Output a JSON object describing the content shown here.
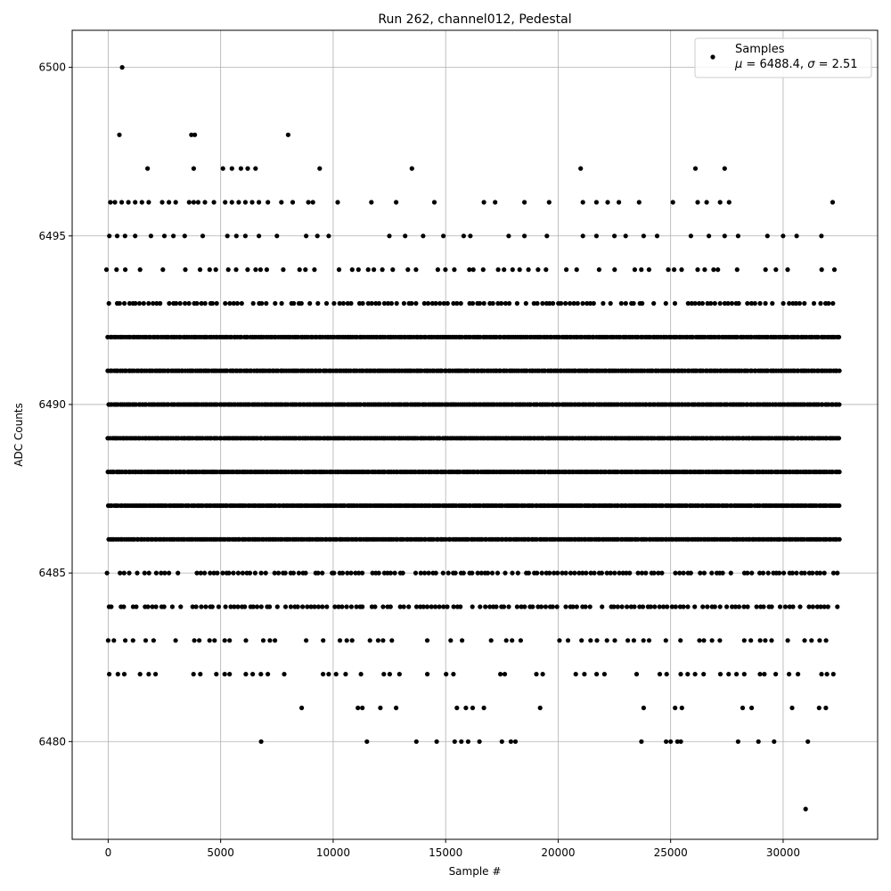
{
  "chart_data": {
    "type": "scatter",
    "title": "Run 262, channel012, Pedestal",
    "xlabel": "Sample #",
    "ylabel": "ADC Counts",
    "xlim": [
      -1600,
      34200
    ],
    "ylim": [
      6477.1,
      6501.1
    ],
    "x_ticks": [
      0,
      5000,
      10000,
      15000,
      20000,
      25000,
      30000
    ],
    "x_tick_labels": [
      "0",
      "5000",
      "10000",
      "15000",
      "20000",
      "25000",
      "30000"
    ],
    "y_ticks": [
      6480,
      6485,
      6490,
      6495,
      6500
    ],
    "y_tick_labels": [
      "6480",
      "6485",
      "6490",
      "6495",
      "6500"
    ],
    "grid": true,
    "marker_color": "#000000",
    "legend": {
      "placement": "top-right",
      "entry_label": "Samples",
      "stats_line_parts": [
        "μ",
        " = 6488.4, ",
        "σ",
        " = 2.51"
      ]
    },
    "series": [
      {
        "name": "Samples",
        "x_range": [
          0,
          32500
        ],
        "levels": [
          {
            "y": 6492,
            "density": "continuous"
          },
          {
            "y": 6491,
            "density": "continuous"
          },
          {
            "y": 6490,
            "density": "continuous"
          },
          {
            "y": 6489,
            "density": "continuous"
          },
          {
            "y": 6488,
            "density": "continuous"
          },
          {
            "y": 6487,
            "density": "continuous"
          },
          {
            "y": 6486,
            "density": "continuous"
          },
          {
            "y": 6493,
            "density": "dense"
          },
          {
            "y": 6485,
            "density": "dense"
          },
          {
            "y": 6484,
            "density": "dense"
          },
          {
            "y": 6494,
            "density": "medium"
          },
          {
            "y": 6483,
            "density": "medium"
          },
          {
            "y": 6482,
            "density": "medium"
          }
        ],
        "sparse_points": [
          {
            "x": 620,
            "y": 6500
          },
          {
            "x": 500,
            "y": 6498
          },
          {
            "x": 3700,
            "y": 6498
          },
          {
            "x": 3850,
            "y": 6498
          },
          {
            "x": 8000,
            "y": 6498
          },
          {
            "x": 1750,
            "y": 6497
          },
          {
            "x": 3800,
            "y": 6497
          },
          {
            "x": 5100,
            "y": 6497
          },
          {
            "x": 5500,
            "y": 6497
          },
          {
            "x": 5900,
            "y": 6497
          },
          {
            "x": 6200,
            "y": 6497
          },
          {
            "x": 6550,
            "y": 6497
          },
          {
            "x": 9400,
            "y": 6497
          },
          {
            "x": 13500,
            "y": 6497
          },
          {
            "x": 21000,
            "y": 6497
          },
          {
            "x": 26100,
            "y": 6497
          },
          {
            "x": 27400,
            "y": 6497
          },
          {
            "x": 100,
            "y": 6496
          },
          {
            "x": 300,
            "y": 6496
          },
          {
            "x": 600,
            "y": 6496
          },
          {
            "x": 900,
            "y": 6496
          },
          {
            "x": 1200,
            "y": 6496
          },
          {
            "x": 1500,
            "y": 6496
          },
          {
            "x": 1800,
            "y": 6496
          },
          {
            "x": 2400,
            "y": 6496
          },
          {
            "x": 2700,
            "y": 6496
          },
          {
            "x": 3000,
            "y": 6496
          },
          {
            "x": 3600,
            "y": 6496
          },
          {
            "x": 3800,
            "y": 6496
          },
          {
            "x": 4000,
            "y": 6496
          },
          {
            "x": 4300,
            "y": 6496
          },
          {
            "x": 4700,
            "y": 6496
          },
          {
            "x": 5200,
            "y": 6496
          },
          {
            "x": 5500,
            "y": 6496
          },
          {
            "x": 5800,
            "y": 6496
          },
          {
            "x": 6100,
            "y": 6496
          },
          {
            "x": 6400,
            "y": 6496
          },
          {
            "x": 6700,
            "y": 6496
          },
          {
            "x": 7100,
            "y": 6496
          },
          {
            "x": 7700,
            "y": 6496
          },
          {
            "x": 8200,
            "y": 6496
          },
          {
            "x": 8900,
            "y": 6496
          },
          {
            "x": 9100,
            "y": 6496
          },
          {
            "x": 10200,
            "y": 6496
          },
          {
            "x": 11700,
            "y": 6496
          },
          {
            "x": 12800,
            "y": 6496
          },
          {
            "x": 14500,
            "y": 6496
          },
          {
            "x": 16700,
            "y": 6496
          },
          {
            "x": 17200,
            "y": 6496
          },
          {
            "x": 18500,
            "y": 6496
          },
          {
            "x": 19600,
            "y": 6496
          },
          {
            "x": 21100,
            "y": 6496
          },
          {
            "x": 21700,
            "y": 6496
          },
          {
            "x": 22200,
            "y": 6496
          },
          {
            "x": 22700,
            "y": 6496
          },
          {
            "x": 23600,
            "y": 6496
          },
          {
            "x": 25100,
            "y": 6496
          },
          {
            "x": 26200,
            "y": 6496
          },
          {
            "x": 26600,
            "y": 6496
          },
          {
            "x": 27200,
            "y": 6496
          },
          {
            "x": 27600,
            "y": 6496
          },
          {
            "x": 32200,
            "y": 6496
          },
          {
            "x": 50,
            "y": 6495
          },
          {
            "x": 400,
            "y": 6495
          },
          {
            "x": 750,
            "y": 6495
          },
          {
            "x": 1200,
            "y": 6495
          },
          {
            "x": 1900,
            "y": 6495
          },
          {
            "x": 2500,
            "y": 6495
          },
          {
            "x": 2900,
            "y": 6495
          },
          {
            "x": 3400,
            "y": 6495
          },
          {
            "x": 4200,
            "y": 6495
          },
          {
            "x": 5300,
            "y": 6495
          },
          {
            "x": 5700,
            "y": 6495
          },
          {
            "x": 6100,
            "y": 6495
          },
          {
            "x": 6700,
            "y": 6495
          },
          {
            "x": 7500,
            "y": 6495
          },
          {
            "x": 8800,
            "y": 6495
          },
          {
            "x": 9300,
            "y": 6495
          },
          {
            "x": 9800,
            "y": 6495
          },
          {
            "x": 12500,
            "y": 6495
          },
          {
            "x": 13200,
            "y": 6495
          },
          {
            "x": 14000,
            "y": 6495
          },
          {
            "x": 14900,
            "y": 6495
          },
          {
            "x": 15800,
            "y": 6495
          },
          {
            "x": 16100,
            "y": 6495
          },
          {
            "x": 17800,
            "y": 6495
          },
          {
            "x": 18500,
            "y": 6495
          },
          {
            "x": 19500,
            "y": 6495
          },
          {
            "x": 21100,
            "y": 6495
          },
          {
            "x": 21700,
            "y": 6495
          },
          {
            "x": 22500,
            "y": 6495
          },
          {
            "x": 23000,
            "y": 6495
          },
          {
            "x": 23800,
            "y": 6495
          },
          {
            "x": 24400,
            "y": 6495
          },
          {
            "x": 25900,
            "y": 6495
          },
          {
            "x": 26700,
            "y": 6495
          },
          {
            "x": 27400,
            "y": 6495
          },
          {
            "x": 28000,
            "y": 6495
          },
          {
            "x": 29300,
            "y": 6495
          },
          {
            "x": 30000,
            "y": 6495
          },
          {
            "x": 30600,
            "y": 6495
          },
          {
            "x": 31700,
            "y": 6495
          },
          {
            "x": 8600,
            "y": 6481
          },
          {
            "x": 11100,
            "y": 6481
          },
          {
            "x": 11300,
            "y": 6481
          },
          {
            "x": 12100,
            "y": 6481
          },
          {
            "x": 12800,
            "y": 6481
          },
          {
            "x": 15500,
            "y": 6481
          },
          {
            "x": 15900,
            "y": 6481
          },
          {
            "x": 16200,
            "y": 6481
          },
          {
            "x": 16700,
            "y": 6481
          },
          {
            "x": 19200,
            "y": 6481
          },
          {
            "x": 23800,
            "y": 6481
          },
          {
            "x": 25200,
            "y": 6481
          },
          {
            "x": 25500,
            "y": 6481
          },
          {
            "x": 28200,
            "y": 6481
          },
          {
            "x": 28600,
            "y": 6481
          },
          {
            "x": 30400,
            "y": 6481
          },
          {
            "x": 31600,
            "y": 6481
          },
          {
            "x": 31900,
            "y": 6481
          },
          {
            "x": 6800,
            "y": 6480
          },
          {
            "x": 11500,
            "y": 6480
          },
          {
            "x": 13700,
            "y": 6480
          },
          {
            "x": 14600,
            "y": 6480
          },
          {
            "x": 15400,
            "y": 6480
          },
          {
            "x": 15700,
            "y": 6480
          },
          {
            "x": 16000,
            "y": 6480
          },
          {
            "x": 16500,
            "y": 6480
          },
          {
            "x": 17500,
            "y": 6480
          },
          {
            "x": 17900,
            "y": 6480
          },
          {
            "x": 18100,
            "y": 6480
          },
          {
            "x": 23700,
            "y": 6480
          },
          {
            "x": 24800,
            "y": 6480
          },
          {
            "x": 25000,
            "y": 6480
          },
          {
            "x": 25300,
            "y": 6480
          },
          {
            "x": 25450,
            "y": 6480
          },
          {
            "x": 28000,
            "y": 6480
          },
          {
            "x": 28900,
            "y": 6480
          },
          {
            "x": 29600,
            "y": 6480
          },
          {
            "x": 31100,
            "y": 6480
          },
          {
            "x": 31000,
            "y": 6478
          }
        ]
      }
    ]
  }
}
